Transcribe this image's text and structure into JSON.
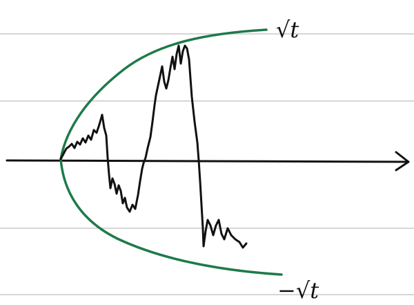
{
  "labels": {
    "upper_bound": "√t",
    "lower_bound": "−√t"
  },
  "colors": {
    "ruled_lines": "#d6d6d6",
    "envelope": "#1e7a4a",
    "path": "#111111",
    "axis": "#111111"
  }
}
